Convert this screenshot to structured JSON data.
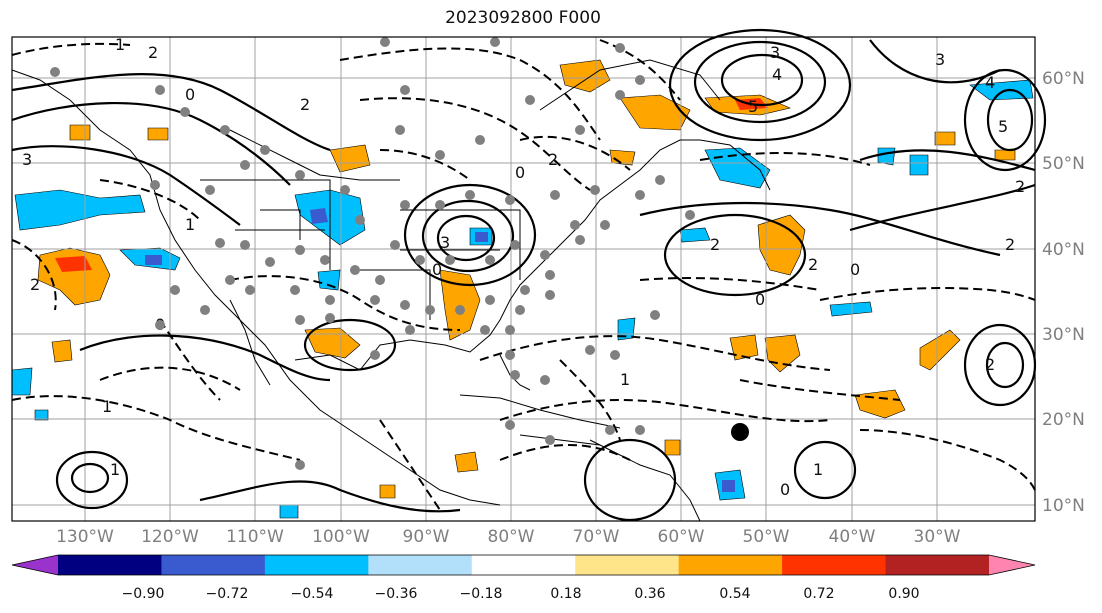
{
  "title": "2023092800 F000",
  "map": {
    "lat_labels": [
      "60°N",
      "50°N",
      "40°N",
      "30°N",
      "20°N",
      "10°N"
    ],
    "lon_labels": [
      "130°W",
      "120°W",
      "110°W",
      "100°W",
      "90°W",
      "80°W",
      "70°W",
      "60°W",
      "50°W",
      "40°W",
      "30°W"
    ],
    "grid_color": "#a0a0a0",
    "coast_color": "#000000",
    "marker_color": "#000000",
    "station_color": "#808080"
  },
  "colorbar": {
    "colors": [
      "#9933cc",
      "#000080",
      "#3a5bd0",
      "#00bfff",
      "#b2e0fa",
      "#ffffff",
      "#ffe58a",
      "#ffa500",
      "#ff3300",
      "#b22222",
      "#ff85b0"
    ],
    "extend_min_color": "#9933cc",
    "extend_max_color": "#ff85b0",
    "tick_labels": [
      "−0.90",
      "−0.72",
      "−0.54",
      "−0.36",
      "−0.18",
      "0.18",
      "0.36",
      "0.54",
      "0.72",
      "0.90"
    ]
  },
  "contour_labels": [
    "1",
    "2",
    "3",
    "4",
    "5",
    "0",
    "1",
    "2",
    "3",
    "4",
    "5",
    "0",
    "1",
    "2",
    "3",
    "0",
    "1",
    "2",
    "0",
    "2",
    "0",
    "1",
    "2",
    "0",
    "1",
    "0"
  ]
}
